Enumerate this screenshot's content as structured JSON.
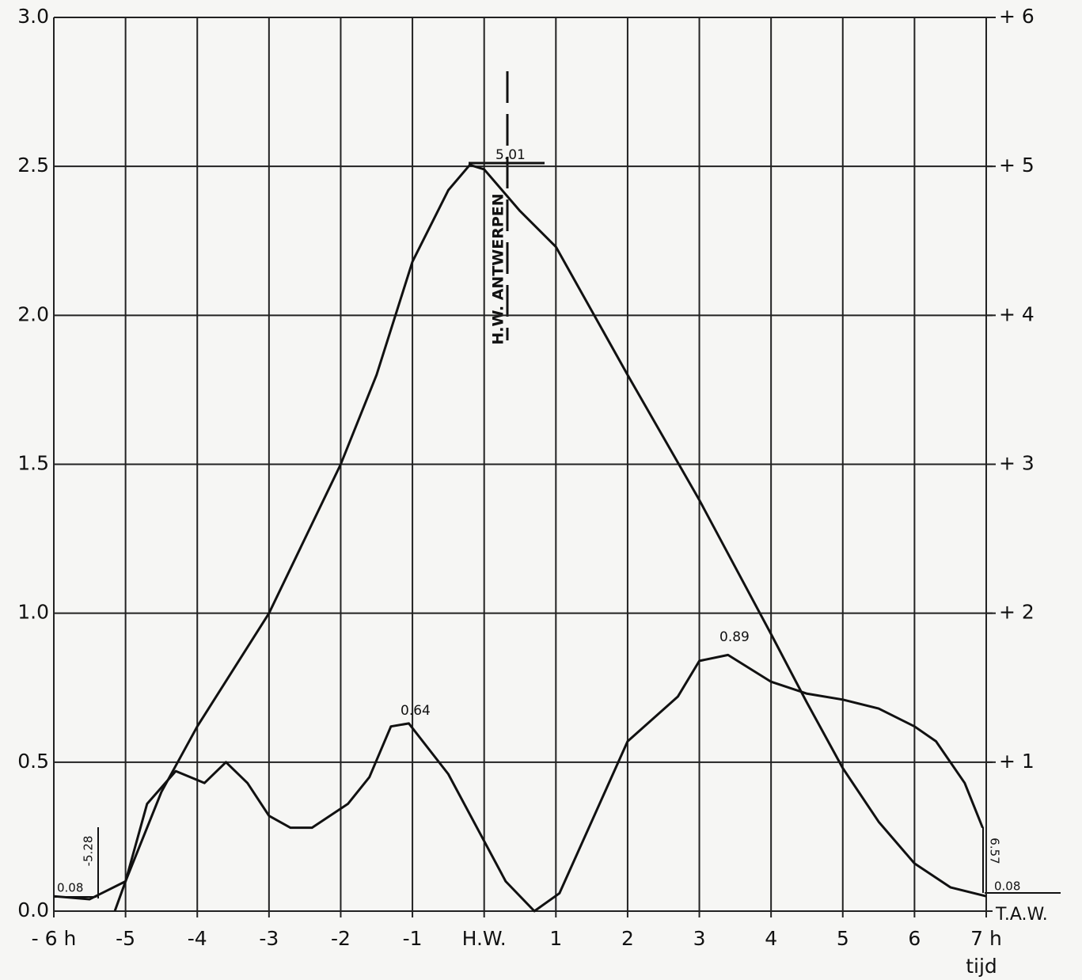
{
  "chart_data": {
    "type": "line",
    "xlim": [
      -6,
      7
    ],
    "xticks": [
      {
        "value": -6,
        "label": "- 6 h"
      },
      -5,
      -4,
      -3,
      -2,
      -1,
      {
        "value": 0,
        "label": "H.W."
      },
      1,
      2,
      3,
      4,
      5,
      6,
      {
        "value": 7,
        "label": "7 h"
      }
    ],
    "xlabel": "tijd",
    "ylim": [
      0,
      3
    ],
    "yticks": [
      {
        "value": 0,
        "label": "0.0"
      },
      0.5,
      {
        "value": 1,
        "label": "1.0"
      },
      1.5,
      {
        "value": 2,
        "label": "2.0"
      },
      2.5,
      {
        "value": 3,
        "label": "3.0"
      }
    ],
    "y2lim": [
      0,
      6
    ],
    "y2ticks": [
      {
        "value": 1,
        "label": "+ 1"
      },
      {
        "value": 2,
        "label": "+ 2"
      },
      {
        "value": 3,
        "label": "+ 3"
      },
      {
        "value": 4,
        "label": "+ 4"
      },
      {
        "value": 5,
        "label": "+ 5"
      },
      {
        "value": 6,
        "label": "+ 6"
      }
    ],
    "y2label": "T.A.W.",
    "grid": true,
    "series": [
      {
        "color": "#111",
        "axis": "y2",
        "x": [
          -5.15,
          -5,
          -4.5,
          -4,
          -3,
          -2,
          -1.5,
          -1,
          -0.5,
          -0.2,
          0,
          0.5,
          1,
          2,
          3,
          4,
          4.5,
          5,
          5.5,
          6,
          6.5,
          7
        ],
        "values": [
          0,
          0.2,
          0.8,
          1.24,
          2.0,
          3.0,
          3.6,
          4.36,
          4.84,
          5.01,
          4.98,
          4.7,
          4.46,
          3.6,
          2.76,
          1.86,
          1.4,
          0.96,
          0.6,
          0.32,
          0.16,
          0.1
        ]
      },
      {
        "color": "#111",
        "x": [
          -6,
          -5.5,
          -5,
          -4.7,
          -4.3,
          -3.9,
          -3.6,
          -3.3,
          -3.0,
          -2.7,
          -2.4,
          -1.9,
          -1.6,
          -1.3,
          -1.05,
          -0.5,
          0.3,
          0.7,
          1.05,
          2.0,
          2.7,
          3.0,
          3.4,
          4.0,
          4.5,
          5.0,
          5.5,
          6.0,
          6.3,
          6.7,
          6.95
        ],
        "values": [
          0.05,
          0.04,
          0.1,
          0.36,
          0.47,
          0.43,
          0.5,
          0.43,
          0.32,
          0.28,
          0.28,
          0.36,
          0.45,
          0.62,
          0.63,
          0.46,
          0.1,
          0,
          0.06,
          0.57,
          0.72,
          0.84,
          0.86,
          0.77,
          0.73,
          0.71,
          0.68,
          0.62,
          0.57,
          0.43,
          0.28
        ]
      }
    ],
    "annotations": {
      "peak": "5.01",
      "hw": "H.W. ANTWERPEN",
      "v1": "0.64",
      "v2": "0.89",
      "start_v": "0.08",
      "start_h": "-5.28",
      "end_h": "6.57",
      "end_v": "0.08"
    }
  }
}
